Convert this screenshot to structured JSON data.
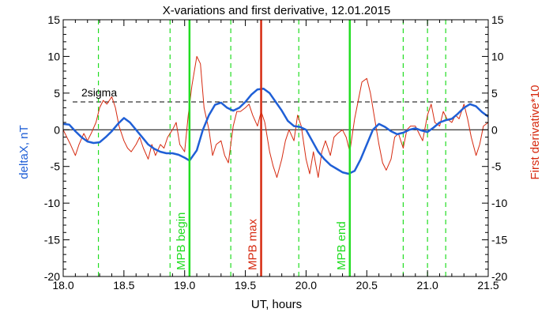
{
  "chart_data": {
    "type": "line",
    "title": "X-variations and first derivative, 12.01.2015",
    "xlabel": "UT, hours",
    "ylabel_left": "deltaX, nT",
    "ylabel_right": "First derivative*10",
    "xlim": [
      18.0,
      21.5
    ],
    "ylim": [
      -20,
      15
    ],
    "x_ticks": [
      "18.0",
      "18.5",
      "19.0",
      "19.5",
      "20.0",
      "20.5",
      "21.0",
      "21.5"
    ],
    "y_ticks_left": [
      "15",
      "10",
      "5",
      "0",
      "-5",
      "-10",
      "-15",
      "-20"
    ],
    "y_ticks_right": [
      "15",
      "10",
      "5",
      "0",
      "-5",
      "-10",
      "-15",
      "-20"
    ],
    "sigma_label": "2sigma",
    "sigma_level": 3.8,
    "zero_level": 0,
    "colors": {
      "deltaX": "#1f5fd6",
      "derivative": "#d62a10",
      "markers_green": "#22dd22",
      "marker_red": "#d62a10",
      "sigma": "#000000"
    },
    "vertical_markers": [
      {
        "x": 19.04,
        "label": "MPB begin",
        "color": "#22dd22"
      },
      {
        "x": 19.63,
        "label": "MPB max",
        "color": "#d62a10"
      },
      {
        "x": 20.36,
        "label": "MPB end",
        "color": "#22dd22"
      }
    ],
    "dashed_markers_x": [
      18.29,
      18.88,
      19.38,
      19.94,
      20.8,
      21.0,
      21.15
    ],
    "series": [
      {
        "name": "deltaX, nT",
        "color": "#1f5fd6",
        "x": [
          18.0,
          18.05,
          18.1,
          18.15,
          18.2,
          18.25,
          18.3,
          18.35,
          18.4,
          18.45,
          18.5,
          18.55,
          18.6,
          18.65,
          18.7,
          18.75,
          18.8,
          18.85,
          18.9,
          18.95,
          19.0,
          19.04,
          19.1,
          19.15,
          19.2,
          19.25,
          19.3,
          19.35,
          19.4,
          19.45,
          19.5,
          19.55,
          19.6,
          19.65,
          19.7,
          19.75,
          19.8,
          19.85,
          19.9,
          19.95,
          20.0,
          20.05,
          20.1,
          20.15,
          20.2,
          20.25,
          20.3,
          20.35,
          20.4,
          20.45,
          20.5,
          20.55,
          20.6,
          20.65,
          20.7,
          20.75,
          20.8,
          20.85,
          20.9,
          20.95,
          21.0,
          21.05,
          21.1,
          21.15,
          21.2,
          21.25,
          21.3,
          21.35,
          21.4,
          21.45,
          21.5
        ],
        "values": [
          0.8,
          0.7,
          -0.2,
          -1.0,
          -1.6,
          -1.8,
          -1.7,
          -1.0,
          -0.2,
          0.8,
          1.6,
          1.0,
          0.0,
          -1.0,
          -2.0,
          -2.6,
          -3.0,
          -3.2,
          -3.2,
          -3.4,
          -3.8,
          -4.2,
          -2.8,
          0.0,
          2.0,
          3.4,
          3.7,
          3.0,
          2.6,
          3.0,
          3.8,
          4.8,
          5.5,
          5.6,
          5.0,
          3.8,
          2.6,
          1.2,
          0.5,
          0.4,
          0.0,
          -1.5,
          -3.0,
          -4.0,
          -4.8,
          -5.3,
          -5.8,
          -6.0,
          -5.6,
          -4.0,
          -2.0,
          0.0,
          0.8,
          0.4,
          -0.2,
          -0.6,
          -0.4,
          0.0,
          0.2,
          -0.1,
          -0.3,
          0.3,
          1.0,
          1.3,
          1.5,
          2.2,
          3.0,
          3.5,
          3.2,
          2.4,
          1.8
        ]
      },
      {
        "name": "First derivative*10",
        "color": "#d62a10",
        "x": [
          18.0,
          18.03,
          18.06,
          18.1,
          18.13,
          18.17,
          18.2,
          18.23,
          18.27,
          18.3,
          18.33,
          18.36,
          18.4,
          18.43,
          18.46,
          18.5,
          18.53,
          18.56,
          18.6,
          18.63,
          18.66,
          18.7,
          18.73,
          18.76,
          18.8,
          18.83,
          18.86,
          18.9,
          18.93,
          18.96,
          19.0,
          19.03,
          19.06,
          19.1,
          19.13,
          19.16,
          19.2,
          19.23,
          19.26,
          19.3,
          19.33,
          19.36,
          19.4,
          19.43,
          19.46,
          19.5,
          19.53,
          19.56,
          19.6,
          19.63,
          19.66,
          19.7,
          19.73,
          19.76,
          19.8,
          19.83,
          19.86,
          19.9,
          19.93,
          19.96,
          20.0,
          20.03,
          20.06,
          20.1,
          20.13,
          20.16,
          20.2,
          20.23,
          20.26,
          20.3,
          20.33,
          20.36,
          20.4,
          20.43,
          20.46,
          20.5,
          20.53,
          20.56,
          20.6,
          20.63,
          20.66,
          20.7,
          20.73,
          20.76,
          20.8,
          20.83,
          20.86,
          20.9,
          20.93,
          20.96,
          21.0,
          21.03,
          21.06,
          21.1,
          21.13,
          21.16,
          21.2,
          21.23,
          21.26,
          21.3,
          21.33,
          21.36,
          21.4,
          21.43,
          21.46,
          21.5
        ],
        "values": [
          0.0,
          -1.0,
          -2.0,
          -3.5,
          -2.0,
          -0.5,
          -1.5,
          -0.5,
          1.0,
          3.0,
          4.0,
          3.5,
          4.5,
          3.0,
          0.5,
          -1.5,
          -2.5,
          -3.0,
          -2.0,
          -1.0,
          -2.5,
          -4.0,
          -2.0,
          -3.5,
          -2.0,
          -2.5,
          -1.0,
          0.0,
          1.0,
          -2.0,
          -3.0,
          2.0,
          6.0,
          10.0,
          9.0,
          3.0,
          0.0,
          -3.5,
          -2.0,
          -1.5,
          -3.5,
          -4.5,
          0.5,
          2.5,
          2.5,
          3.0,
          3.5,
          2.0,
          0.5,
          2.5,
          1.0,
          -3.0,
          -5.0,
          -6.5,
          -4.0,
          -1.5,
          0.0,
          -1.5,
          2.0,
          0.5,
          -4.0,
          -6.0,
          -3.0,
          -6.5,
          -3.0,
          -1.5,
          -3.5,
          -1.0,
          -0.5,
          0.0,
          -1.0,
          -3.0,
          1.5,
          4.0,
          6.5,
          7.0,
          5.0,
          2.0,
          -2.0,
          -4.5,
          -5.5,
          -4.0,
          -1.0,
          -0.5,
          -2.5,
          0.0,
          0.5,
          0.5,
          -0.5,
          -1.5,
          2.0,
          3.5,
          1.0,
          0.5,
          2.5,
          1.5,
          1.0,
          2.0,
          1.5,
          3.5,
          1.5,
          -1.0,
          -3.5,
          -2.0,
          0.5,
          1.0
        ]
      }
    ]
  }
}
